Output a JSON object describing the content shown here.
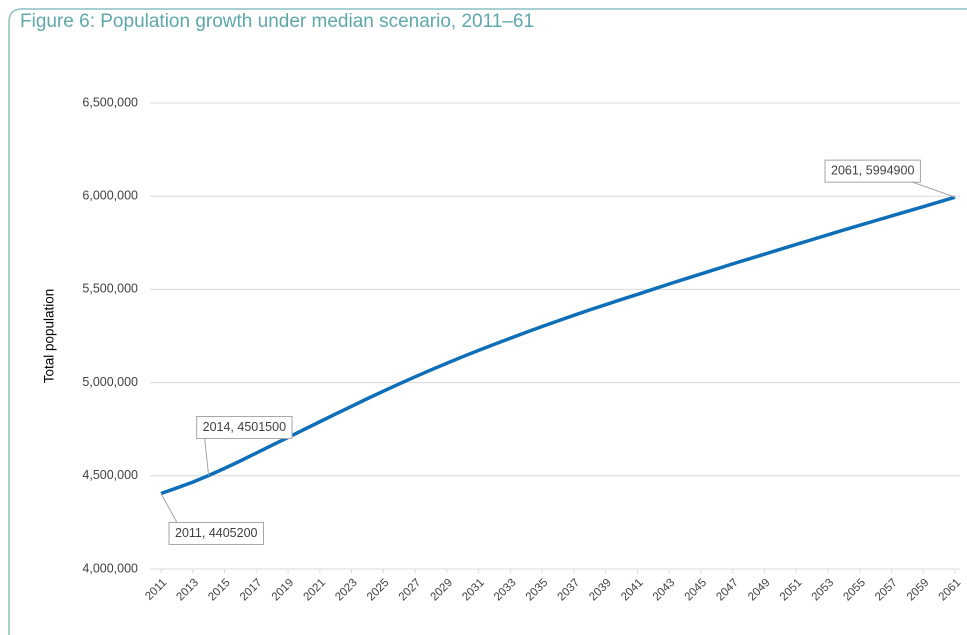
{
  "chart_data": {
    "type": "line",
    "title": "Figure 6: Population growth under median scenario, 2011–61",
    "y_label": "Total population",
    "x": [
      2011,
      2012,
      2013,
      2014,
      2015,
      2016,
      2017,
      2018,
      2019,
      2020,
      2021,
      2022,
      2023,
      2024,
      2025,
      2026,
      2027,
      2028,
      2029,
      2030,
      2031,
      2032,
      2033,
      2034,
      2035,
      2036,
      2037,
      2038,
      2039,
      2040,
      2041,
      2042,
      2043,
      2044,
      2045,
      2046,
      2047,
      2048,
      2049,
      2050,
      2051,
      2052,
      2053,
      2054,
      2055,
      2056,
      2057,
      2058,
      2059,
      2060,
      2061
    ],
    "series": [
      {
        "name": "Total population",
        "color": "#0e6fb8",
        "values": [
          4405200,
          4435000,
          4466000,
          4501500,
          4540000,
          4580000,
          4622000,
          4664000,
          4706000,
          4748000,
          4790000,
          4832000,
          4873000,
          4914000,
          4954000,
          4993000,
          5031000,
          5068000,
          5104000,
          5139000,
          5173000,
          5206000,
          5238000,
          5270000,
          5301000,
          5331000,
          5361000,
          5390000,
          5418000,
          5446000,
          5473000,
          5501000,
          5529000,
          5556000,
          5583000,
          5610000,
          5637000,
          5663000,
          5689000,
          5715000,
          5741000,
          5767000,
          5793000,
          5819000,
          5844000,
          5869000,
          5894000,
          5919000,
          5944000,
          5969000,
          5994900
        ]
      }
    ],
    "xlim": [
      2011,
      2061
    ],
    "xticks": [
      2011,
      2013,
      2015,
      2017,
      2019,
      2021,
      2023,
      2025,
      2027,
      2029,
      2031,
      2033,
      2035,
      2037,
      2039,
      2041,
      2043,
      2045,
      2047,
      2049,
      2051,
      2053,
      2055,
      2057,
      2059,
      2061
    ],
    "ylim": [
      4000000,
      6500000
    ],
    "yticks": [
      {
        "value": 4000000,
        "label": "4,000,000"
      },
      {
        "value": 4500000,
        "label": "4,500,000"
      },
      {
        "value": 5000000,
        "label": "5,000,000"
      },
      {
        "value": 5500000,
        "label": "5,500,000"
      },
      {
        "value": 6000000,
        "label": "6,000,000"
      },
      {
        "value": 6500000,
        "label": "6,500,000"
      }
    ],
    "grid": true,
    "annotations": [
      {
        "text": "2011, 4405200",
        "x": 2011,
        "y": 4405200
      },
      {
        "text": "2014, 4501500",
        "x": 2014,
        "y": 4501500
      },
      {
        "text": "2061, 5994900",
        "x": 2061,
        "y": 5994900
      }
    ]
  }
}
